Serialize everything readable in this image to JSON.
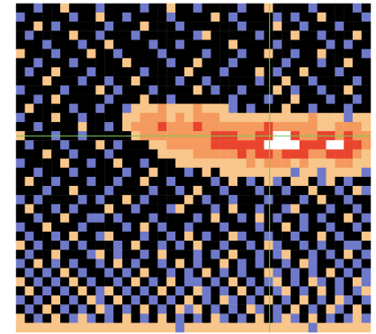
{
  "chart_data": {
    "type": "heatmap",
    "tick_labels": false,
    "xlim": [
      0,
      40
    ],
    "ylim": [
      0,
      36
    ],
    "zlim": [
      0,
      5
    ],
    "colors": [
      "#000000",
      "#6f79c9",
      "#f8c58b",
      "#f59a5e",
      "#e8442e",
      "#ffffff"
    ],
    "crosshair": {
      "x": 28.6,
      "y": 14.5,
      "color": "#7ec850"
    },
    "cells": [
      [
        0,
        0,
        1,
        0,
        0,
        2,
        0,
        0,
        0,
        1,
        0,
        0,
        0,
        0,
        1,
        0,
        0,
        2,
        0,
        0,
        1,
        0,
        0,
        0,
        0,
        1,
        0,
        0,
        2,
        0,
        0,
        0,
        0,
        1,
        0,
        0,
        0,
        0,
        1,
        0
      ],
      [
        1,
        0,
        0,
        0,
        0,
        0,
        1,
        0,
        0,
        2,
        0,
        0,
        1,
        0,
        0,
        0,
        0,
        1,
        0,
        0,
        0,
        0,
        2,
        0,
        1,
        0,
        0,
        0,
        0,
        1,
        0,
        1,
        0,
        0,
        2,
        0,
        0,
        0,
        0,
        1
      ],
      [
        0,
        0,
        2,
        0,
        1,
        0,
        0,
        0,
        0,
        0,
        1,
        0,
        0,
        0,
        2,
        0,
        0,
        0,
        1,
        0,
        0,
        0,
        0,
        0,
        0,
        1,
        0,
        0,
        0,
        2,
        0,
        0,
        1,
        0,
        0,
        0,
        1,
        0,
        0,
        0
      ],
      [
        0,
        1,
        0,
        0,
        0,
        0,
        2,
        0,
        0,
        1,
        0,
        0,
        0,
        1,
        0,
        0,
        0,
        0,
        0,
        0,
        1,
        2,
        0,
        0,
        0,
        0,
        0,
        1,
        0,
        0,
        0,
        2,
        0,
        0,
        1,
        0,
        0,
        0,
        2,
        0
      ],
      [
        0,
        0,
        0,
        1,
        0,
        0,
        0,
        1,
        0,
        0,
        2,
        0,
        0,
        0,
        0,
        1,
        0,
        0,
        1,
        0,
        0,
        0,
        0,
        0,
        2,
        0,
        0,
        0,
        0,
        1,
        0,
        0,
        0,
        0,
        0,
        1,
        0,
        1,
        0,
        0
      ],
      [
        2,
        0,
        0,
        0,
        1,
        0,
        0,
        0,
        2,
        0,
        0,
        1,
        0,
        0,
        0,
        0,
        1,
        0,
        0,
        0,
        0,
        1,
        0,
        0,
        0,
        1,
        0,
        0,
        2,
        0,
        0,
        1,
        0,
        0,
        2,
        0,
        0,
        0,
        0,
        1
      ],
      [
        0,
        0,
        1,
        0,
        0,
        0,
        1,
        0,
        0,
        0,
        0,
        0,
        2,
        0,
        0,
        0,
        0,
        1,
        0,
        0,
        2,
        0,
        0,
        0,
        1,
        0,
        0,
        0,
        0,
        0,
        1,
        0,
        0,
        0,
        1,
        0,
        0,
        2,
        0,
        0
      ],
      [
        0,
        1,
        0,
        0,
        2,
        0,
        0,
        0,
        1,
        0,
        0,
        0,
        0,
        0,
        1,
        0,
        0,
        0,
        0,
        2,
        0,
        0,
        0,
        1,
        0,
        0,
        0,
        2,
        0,
        1,
        0,
        0,
        2,
        0,
        0,
        0,
        1,
        0,
        0,
        0
      ],
      [
        0,
        0,
        0,
        2,
        0,
        0,
        0,
        1,
        0,
        0,
        1,
        0,
        0,
        2,
        0,
        0,
        0,
        0,
        1,
        0,
        0,
        1,
        0,
        0,
        0,
        0,
        0,
        1,
        0,
        0,
        2,
        0,
        0,
        1,
        0,
        0,
        0,
        0,
        1,
        0
      ],
      [
        1,
        0,
        0,
        0,
        0,
        1,
        0,
        0,
        0,
        2,
        0,
        1,
        0,
        0,
        0,
        1,
        0,
        0,
        0,
        0,
        2,
        0,
        1,
        0,
        0,
        1,
        0,
        0,
        0,
        2,
        0,
        1,
        0,
        0,
        1,
        0,
        0,
        2,
        0,
        0
      ],
      [
        0,
        0,
        1,
        0,
        2,
        0,
        0,
        0,
        0,
        0,
        1,
        0,
        0,
        0,
        2,
        0,
        0,
        1,
        0,
        0,
        0,
        0,
        0,
        0,
        1,
        0,
        0,
        0,
        1,
        0,
        0,
        2,
        0,
        0,
        0,
        1,
        0,
        0,
        1,
        0
      ],
      [
        0,
        2,
        0,
        0,
        0,
        0,
        1,
        0,
        0,
        1,
        0,
        0,
        1,
        2,
        2,
        2,
        3,
        2,
        2,
        2,
        3,
        2,
        2,
        2,
        1,
        0,
        1,
        0,
        0,
        0,
        2,
        0,
        0,
        1,
        0,
        0,
        0,
        1,
        0,
        0
      ],
      [
        1,
        0,
        0,
        0,
        2,
        0,
        0,
        1,
        0,
        0,
        0,
        0,
        2,
        2,
        3,
        3,
        3,
        2,
        3,
        2,
        3,
        3,
        3,
        2,
        2,
        2,
        2,
        2,
        2,
        2,
        2,
        2,
        2,
        3,
        2,
        2,
        2,
        1,
        2,
        2
      ],
      [
        0,
        0,
        1,
        0,
        0,
        0,
        0,
        2,
        0,
        0,
        1,
        0,
        2,
        3,
        3,
        3,
        4,
        3,
        3,
        3,
        4,
        3,
        3,
        3,
        3,
        3,
        3,
        3,
        4,
        3,
        3,
        3,
        3,
        3,
        2,
        2,
        3,
        3,
        3,
        2
      ],
      [
        2,
        0,
        0,
        0,
        1,
        0,
        0,
        1,
        0,
        0,
        0,
        0,
        0,
        2,
        3,
        3,
        3,
        3,
        3,
        3,
        3,
        3,
        4,
        4,
        4,
        3,
        3,
        4,
        4,
        5,
        5,
        4,
        3,
        3,
        4,
        4,
        3,
        4,
        3,
        3
      ],
      [
        0,
        1,
        0,
        0,
        0,
        1,
        0,
        0,
        0,
        2,
        0,
        1,
        0,
        0,
        0,
        2,
        2,
        3,
        3,
        3,
        3,
        3,
        4,
        4,
        4,
        4,
        4,
        4,
        5,
        5,
        5,
        5,
        4,
        4,
        4,
        5,
        5,
        4,
        4,
        3
      ],
      [
        0,
        0,
        0,
        2,
        0,
        0,
        1,
        0,
        0,
        0,
        1,
        0,
        0,
        0,
        0,
        0,
        2,
        2,
        2,
        2,
        3,
        3,
        3,
        3,
        3,
        4,
        3,
        4,
        4,
        3,
        4,
        4,
        4,
        3,
        3,
        4,
        4,
        4,
        3,
        2
      ],
      [
        1,
        0,
        0,
        0,
        0,
        2,
        0,
        0,
        1,
        0,
        0,
        2,
        0,
        0,
        1,
        0,
        0,
        0,
        2,
        2,
        2,
        2,
        2,
        2,
        2,
        2,
        3,
        2,
        3,
        3,
        3,
        2,
        3,
        2,
        2,
        2,
        3,
        3,
        2,
        2
      ],
      [
        0,
        0,
        1,
        0,
        0,
        0,
        1,
        0,
        0,
        0,
        0,
        0,
        1,
        0,
        0,
        2,
        0,
        0,
        0,
        1,
        0,
        2,
        0,
        2,
        2,
        2,
        2,
        2,
        2,
        2,
        2,
        1,
        2,
        2,
        1,
        2,
        2,
        2,
        2,
        1
      ],
      [
        0,
        2,
        0,
        0,
        1,
        0,
        0,
        0,
        1,
        0,
        0,
        1,
        0,
        0,
        2,
        0,
        0,
        1,
        0,
        0,
        0,
        0,
        1,
        0,
        2,
        0,
        1,
        0,
        2,
        1,
        0,
        2,
        2,
        0,
        1,
        2,
        0,
        1,
        0,
        0
      ],
      [
        0,
        0,
        0,
        1,
        0,
        0,
        2,
        0,
        0,
        0,
        1,
        0,
        0,
        0,
        0,
        1,
        0,
        0,
        1,
        0,
        2,
        0,
        0,
        1,
        0,
        0,
        0,
        1,
        0,
        0,
        1,
        0,
        0,
        2,
        0,
        0,
        1,
        0,
        2,
        1
      ],
      [
        1,
        0,
        1,
        0,
        0,
        0,
        0,
        1,
        0,
        1,
        0,
        0,
        2,
        0,
        1,
        0,
        0,
        0,
        0,
        2,
        0,
        1,
        0,
        0,
        1,
        0,
        0,
        0,
        1,
        0,
        0,
        0,
        1,
        0,
        2,
        0,
        0,
        1,
        0,
        0
      ],
      [
        0,
        2,
        0,
        0,
        1,
        0,
        1,
        0,
        0,
        0,
        2,
        0,
        0,
        1,
        0,
        0,
        0,
        1,
        2,
        0,
        0,
        0,
        1,
        0,
        2,
        0,
        0,
        1,
        0,
        0,
        1,
        2,
        0,
        0,
        0,
        1,
        0,
        0,
        1,
        0
      ],
      [
        0,
        0,
        1,
        0,
        0,
        2,
        0,
        0,
        1,
        1,
        0,
        1,
        0,
        0,
        0,
        1,
        0,
        0,
        0,
        0,
        1,
        0,
        2,
        0,
        0,
        1,
        0,
        2,
        0,
        1,
        0,
        0,
        1,
        0,
        1,
        0,
        0,
        2,
        0,
        1
      ],
      [
        1,
        0,
        0,
        2,
        0,
        0,
        0,
        1,
        0,
        0,
        0,
        0,
        1,
        0,
        2,
        0,
        1,
        0,
        0,
        1,
        0,
        0,
        0,
        1,
        0,
        0,
        0,
        1,
        0,
        0,
        2,
        0,
        1,
        0,
        0,
        1,
        0,
        0,
        1,
        0
      ],
      [
        0,
        1,
        0,
        0,
        1,
        0,
        2,
        0,
        0,
        1,
        2,
        0,
        0,
        0,
        1,
        0,
        0,
        1,
        0,
        2,
        0,
        1,
        0,
        0,
        2,
        1,
        0,
        0,
        1,
        0,
        0,
        1,
        0,
        0,
        2,
        0,
        1,
        0,
        0,
        2
      ],
      [
        2,
        0,
        1,
        0,
        0,
        1,
        0,
        1,
        0,
        0,
        0,
        1,
        0,
        2,
        0,
        0,
        1,
        0,
        1,
        0,
        2,
        0,
        0,
        1,
        0,
        0,
        1,
        0,
        2,
        1,
        0,
        0,
        1,
        0,
        1,
        0,
        0,
        1,
        1,
        0
      ],
      [
        0,
        1,
        0,
        0,
        2,
        0,
        0,
        0,
        1,
        2,
        0,
        1,
        0,
        0,
        1,
        0,
        2,
        0,
        0,
        0,
        1,
        0,
        1,
        0,
        2,
        0,
        0,
        1,
        0,
        1,
        2,
        0,
        0,
        1,
        0,
        1,
        0,
        2,
        0,
        1
      ],
      [
        1,
        0,
        2,
        0,
        1,
        0,
        1,
        0,
        0,
        1,
        0,
        2,
        0,
        1,
        0,
        0,
        1,
        0,
        2,
        0,
        1,
        0,
        0,
        2,
        0,
        1,
        0,
        1,
        0,
        0,
        1,
        0,
        2,
        1,
        0,
        0,
        1,
        0,
        1,
        0
      ],
      [
        0,
        1,
        0,
        1,
        0,
        2,
        0,
        1,
        0,
        0,
        1,
        0,
        1,
        0,
        2,
        0,
        0,
        1,
        0,
        1,
        0,
        2,
        0,
        1,
        0,
        1,
        0,
        0,
        2,
        1,
        0,
        1,
        0,
        1,
        0,
        2,
        0,
        1,
        0,
        1
      ],
      [
        2,
        0,
        1,
        0,
        1,
        0,
        2,
        0,
        1,
        0,
        0,
        1,
        0,
        2,
        0,
        1,
        0,
        2,
        0,
        1,
        1,
        0,
        1,
        0,
        2,
        0,
        1,
        0,
        1,
        2,
        0,
        1,
        0,
        2,
        1,
        0,
        1,
        0,
        2,
        1
      ],
      [
        0,
        2,
        0,
        1,
        0,
        1,
        0,
        2,
        0,
        1,
        2,
        0,
        1,
        0,
        1,
        0,
        2,
        0,
        1,
        0,
        2,
        1,
        0,
        1,
        0,
        2,
        0,
        1,
        0,
        1,
        2,
        0,
        1,
        0,
        2,
        0,
        1,
        0,
        1,
        2
      ],
      [
        1,
        0,
        1,
        0,
        2,
        0,
        1,
        0,
        2,
        1,
        0,
        2,
        0,
        1,
        0,
        1,
        0,
        1,
        0,
        2,
        0,
        1,
        0,
        2,
        1,
        0,
        1,
        0,
        2,
        0,
        1,
        0,
        2,
        0,
        1,
        0,
        2,
        1,
        0,
        1
      ],
      [
        0,
        1,
        0,
        2,
        0,
        1,
        0,
        1,
        0,
        2,
        1,
        0,
        1,
        0,
        2,
        0,
        1,
        0,
        2,
        1,
        2,
        0,
        1,
        0,
        1,
        0,
        2,
        1,
        0,
        1,
        0,
        2,
        0,
        1,
        0,
        2,
        1,
        0,
        2,
        0
      ],
      [
        2,
        0,
        1,
        0,
        2,
        0,
        1,
        2,
        1,
        0,
        1,
        0,
        2,
        0,
        1,
        0,
        2,
        0,
        1,
        0,
        1,
        0,
        2,
        1,
        0,
        1,
        0,
        2,
        0,
        1,
        2,
        1,
        0,
        2,
        0,
        1,
        0,
        1,
        2,
        1
      ],
      [
        2,
        2,
        2,
        2,
        2,
        2,
        2,
        2,
        2,
        2,
        2,
        2,
        2,
        2,
        2,
        2,
        2,
        2,
        1,
        2,
        2,
        2,
        2,
        2,
        2,
        2,
        2,
        2,
        2,
        2,
        2,
        2,
        2,
        1,
        2,
        2,
        2,
        2,
        2,
        2
      ]
    ]
  }
}
